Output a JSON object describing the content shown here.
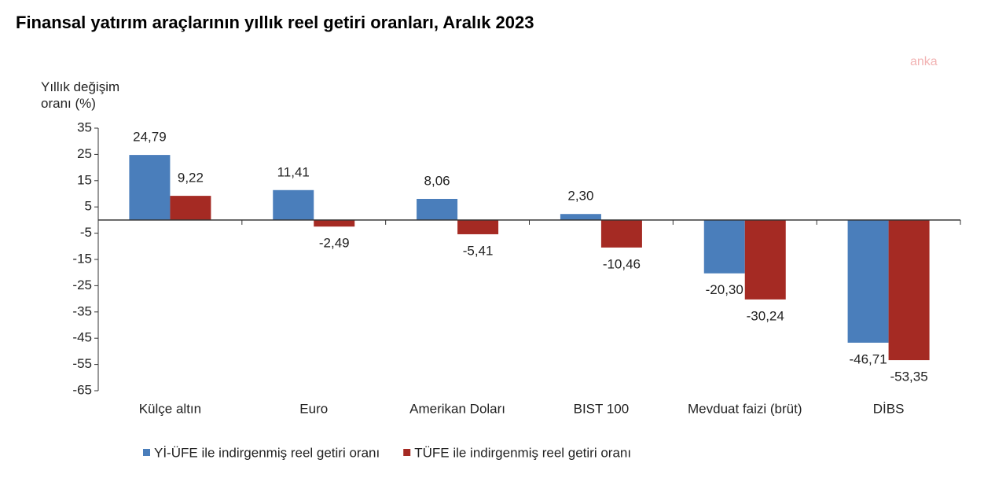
{
  "chart_data": {
    "type": "bar",
    "title": "Finansal yatırım araçlarının yıllık reel getiri oranları, Aralık 2023",
    "watermark": "anka",
    "y_label": "Yıllık değişim oranı (%)",
    "categories": [
      "Külçe altın",
      "Euro",
      "Amerikan Doları",
      "BIST 100",
      "Mevduat faizi (brüt)",
      "DİBS"
    ],
    "series": [
      {
        "name": "Yİ-ÜFE ile indirgenmiş reel getiri oranı",
        "color": "#4a7ebb",
        "values": [
          24.79,
          11.41,
          8.06,
          2.3,
          -20.3,
          -46.71
        ],
        "value_labels": [
          "24,79",
          "11,41",
          "8,06",
          "2,30",
          "-20,30",
          "-46,71"
        ]
      },
      {
        "name": "TÜFE ile indirgenmiş reel getiri oranı",
        "color": "#a52a23",
        "values": [
          9.22,
          -2.49,
          -5.41,
          -10.46,
          -30.24,
          -53.35
        ],
        "value_labels": [
          "9,22",
          "-2,49",
          "-5,41",
          "-10,46",
          "-30,24",
          "-53,35"
        ]
      }
    ],
    "ylim": [
      -65,
      35
    ],
    "yticks": [
      35,
      25,
      15,
      5,
      -5,
      -15,
      -25,
      -35,
      -45,
      -55,
      -65
    ],
    "grid": false,
    "legend": "bottom"
  }
}
